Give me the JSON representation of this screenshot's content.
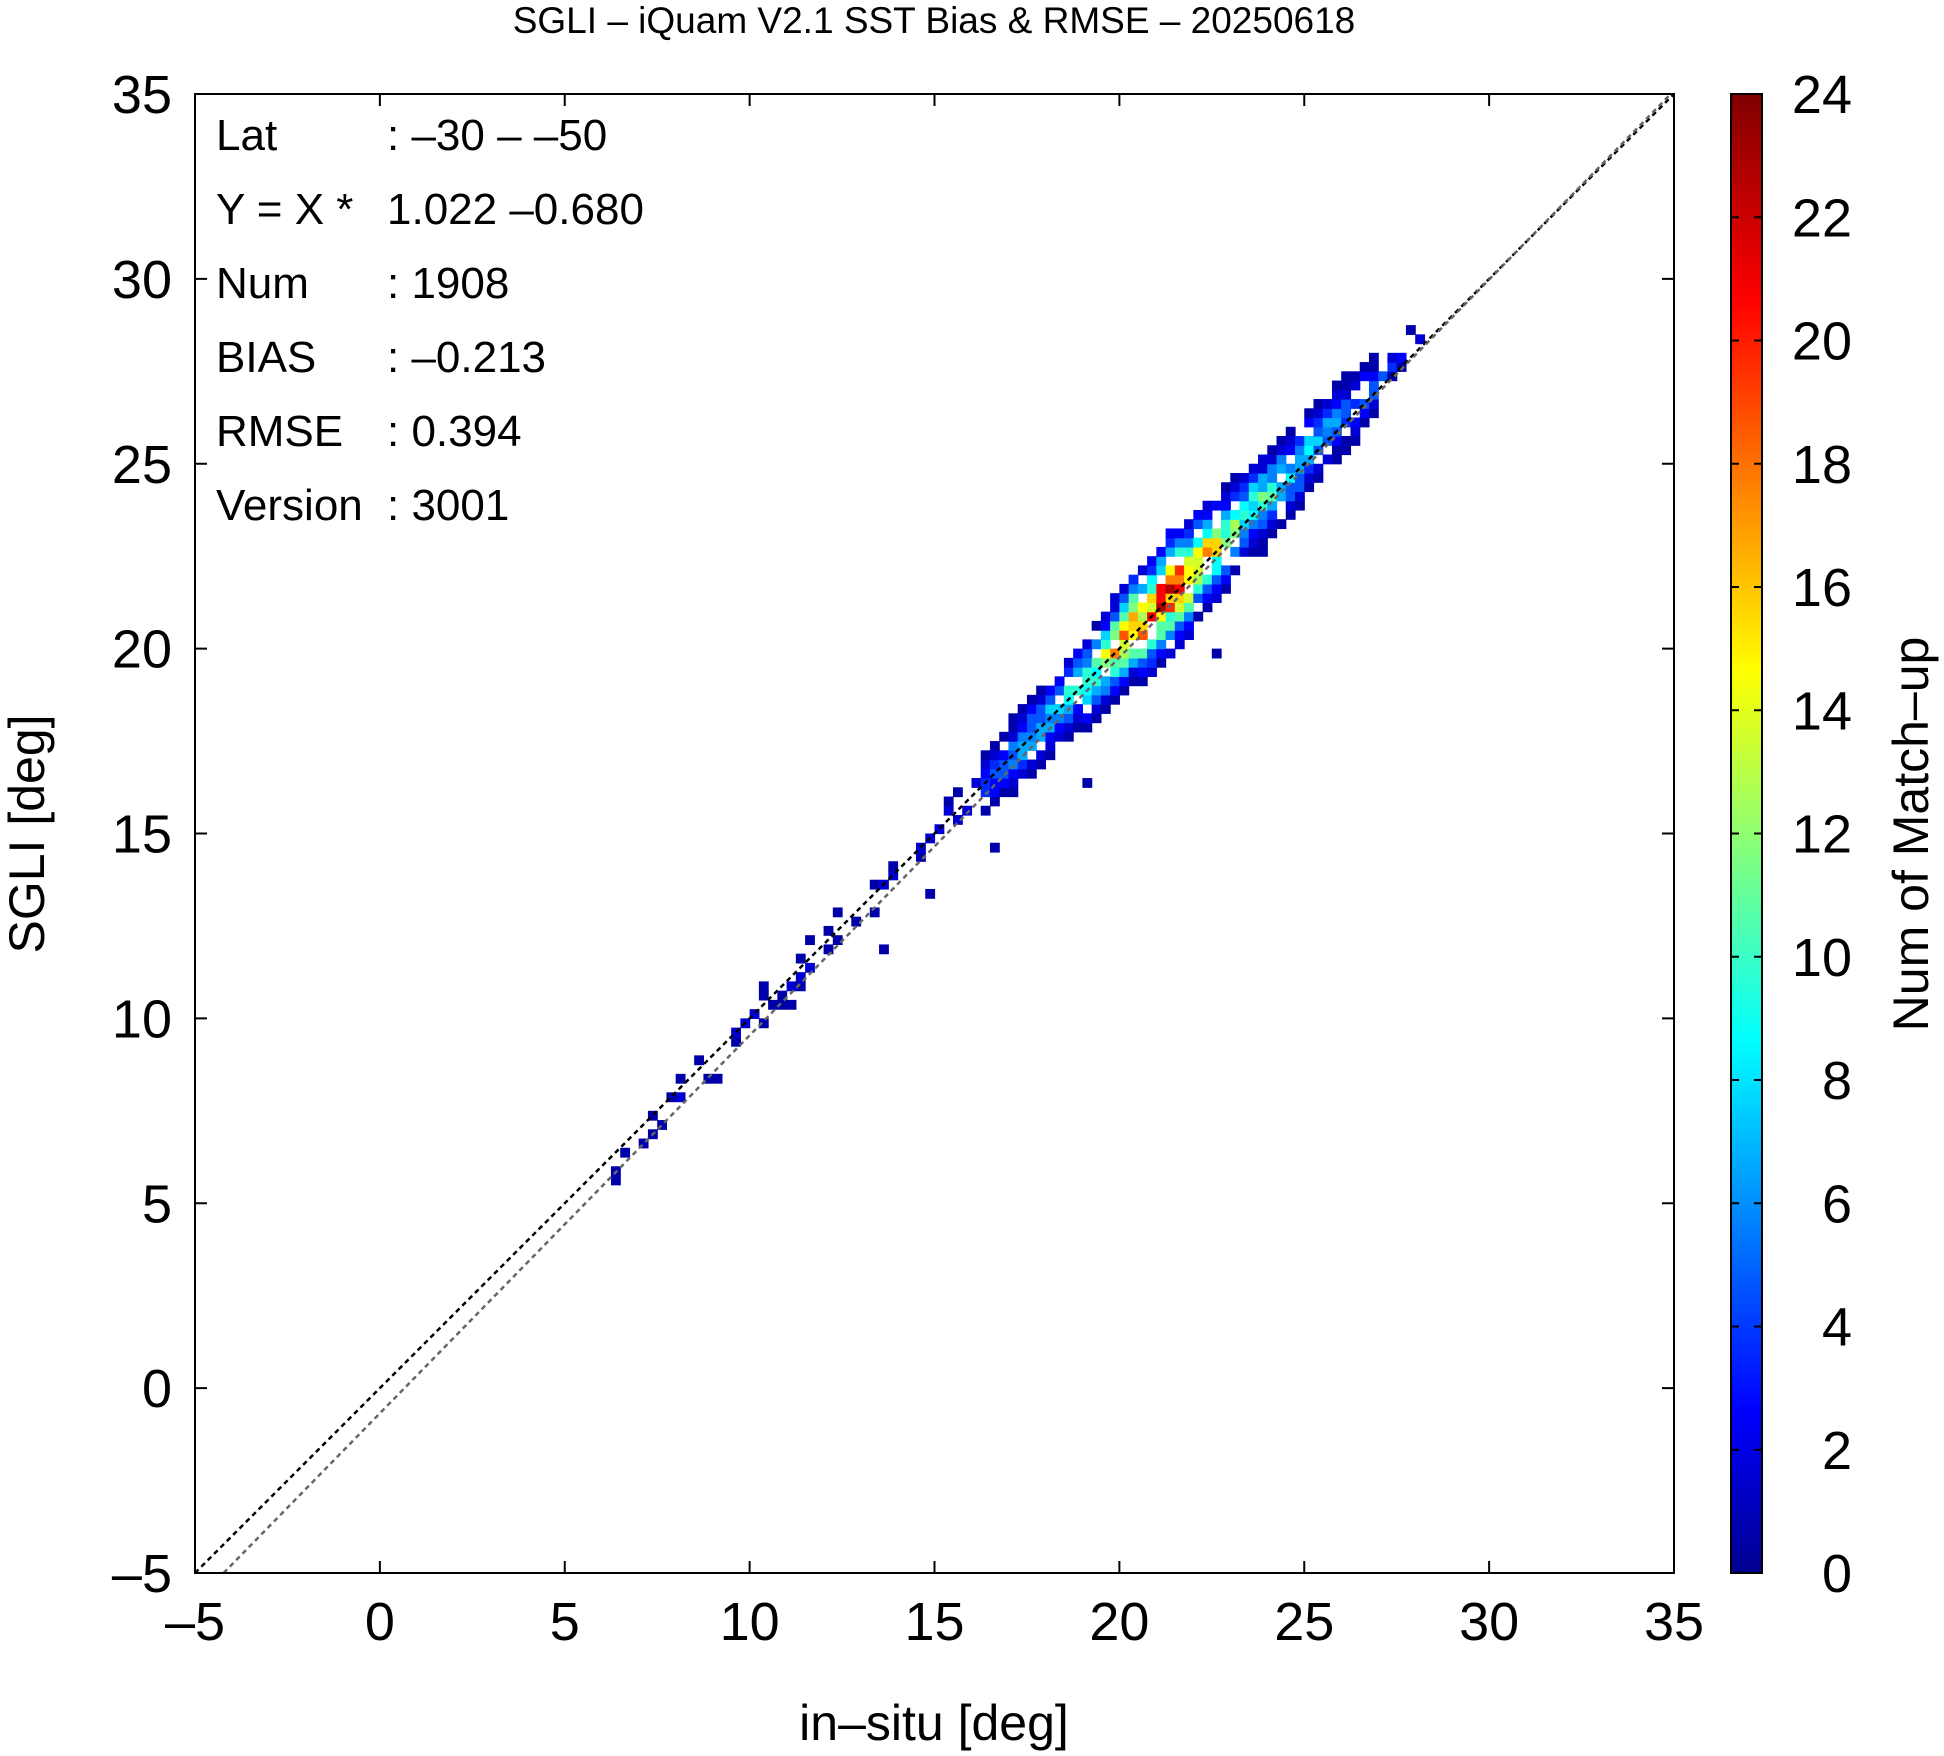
{
  "chart_data": {
    "type": "heatmap",
    "title": "SGLI – iQuam V2.1 SST Bias & RMSE  – 20250618",
    "xlabel": "in–situ [deg]",
    "ylabel": "SGLI [deg]",
    "xlim": [
      -5,
      35
    ],
    "ylim": [
      -5,
      35
    ],
    "x_ticks": [
      "–5",
      "0",
      "5",
      "10",
      "15",
      "20",
      "25",
      "30",
      "35"
    ],
    "y_ticks": [
      "–5",
      "0",
      "5",
      "10",
      "15",
      "20",
      "25",
      "30",
      "35"
    ],
    "colorbar": {
      "label": "Num of Match–up",
      "range": [
        0,
        24
      ],
      "ticks": [
        "0",
        "2",
        "4",
        "6",
        "8",
        "10",
        "12",
        "14",
        "16",
        "18",
        "20",
        "22",
        "24"
      ],
      "colormap": "jet"
    },
    "annotations": [
      {
        "key": "Lat",
        "value": ": –30 – –50"
      },
      {
        "key": "Y = X *",
        "value": "1.022 –0.680"
      },
      {
        "key": "Num",
        "value": ": 1908"
      },
      {
        "key": "BIAS",
        "value": ": –0.213"
      },
      {
        "key": "RMSE",
        "value": ": 0.394"
      },
      {
        "key": "Version",
        "value": ": 3001"
      }
    ],
    "reference_lines": [
      {
        "name": "1:1",
        "slope": 1.0,
        "intercept": 0.0,
        "color": "#000000",
        "style": "dotted"
      },
      {
        "name": "regression",
        "slope": 1.022,
        "intercept": -0.68,
        "color": "#666666",
        "style": "dotted"
      }
    ],
    "grid": false,
    "density_ridge": [
      {
        "x": 6.5,
        "count": 1
      },
      {
        "x": 8.5,
        "count": 2
      },
      {
        "x": 9.5,
        "count": 2
      },
      {
        "x": 11.0,
        "count": 3
      },
      {
        "x": 12.5,
        "count": 2
      },
      {
        "x": 14.0,
        "count": 2
      },
      {
        "x": 15.5,
        "count": 3
      },
      {
        "x": 16.5,
        "count": 5
      },
      {
        "x": 17.5,
        "count": 7
      },
      {
        "x": 18.5,
        "count": 9
      },
      {
        "x": 19.5,
        "count": 14
      },
      {
        "x": 20.5,
        "count": 19
      },
      {
        "x": 21.3,
        "count": 22
      },
      {
        "x": 22.0,
        "count": 17
      },
      {
        "x": 23.0,
        "count": 12
      },
      {
        "x": 24.0,
        "count": 10
      },
      {
        "x": 25.0,
        "count": 8
      },
      {
        "x": 26.0,
        "count": 6
      },
      {
        "x": 27.0,
        "count": 4
      },
      {
        "x": 27.8,
        "count": 2
      }
    ]
  }
}
